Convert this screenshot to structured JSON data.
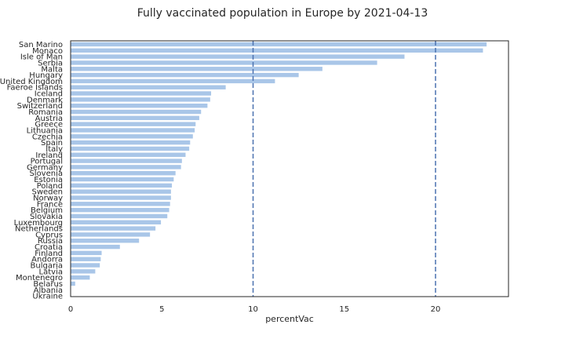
{
  "chart_data": {
    "type": "bar",
    "orientation": "horizontal",
    "title": "Fully vaccinated population in Europe by 2021-04-13",
    "xlabel": "percentVac",
    "ylabel": "",
    "xlim": [
      0,
      24
    ],
    "xticks": [
      "0",
      "5",
      "10",
      "15",
      "20"
    ],
    "bar_color": "#a9c6e8",
    "reference_line_color": "#4c72b0",
    "reference_lines_x": [
      10,
      20
    ],
    "grid": false,
    "categories": [
      "San Marino",
      "Monaco",
      "Isle of Man",
      "Serbia",
      "Malta",
      "Hungary",
      "United Kingdom",
      "Faeroe Islands",
      "Iceland",
      "Denmark",
      "Switzerland",
      "Romania",
      "Austria",
      "Greece",
      "Lithuania",
      "Czechia",
      "Spain",
      "Italy",
      "Ireland",
      "Portugal",
      "Germany",
      "Slovenia",
      "Estonia",
      "Poland",
      "Sweden",
      "Norway",
      "France",
      "Belgium",
      "Slovakia",
      "Luxembourg",
      "Netherlands",
      "Cyprus",
      "Russia",
      "Croatia",
      "Finland",
      "Andorra",
      "Bulgaria",
      "Latvia",
      "Montenegro",
      "Belarus",
      "Albania",
      "Ukraine"
    ],
    "values": [
      22.8,
      22.6,
      18.3,
      16.8,
      13.8,
      12.5,
      11.2,
      8.5,
      7.7,
      7.65,
      7.5,
      7.15,
      7.05,
      6.85,
      6.8,
      6.7,
      6.55,
      6.5,
      6.3,
      6.1,
      6.05,
      5.75,
      5.65,
      5.55,
      5.5,
      5.5,
      5.45,
      5.4,
      5.3,
      4.95,
      4.65,
      4.35,
      3.75,
      2.7,
      1.7,
      1.65,
      1.6,
      1.35,
      1.05,
      0.25,
      0.0,
      0.0
    ]
  }
}
